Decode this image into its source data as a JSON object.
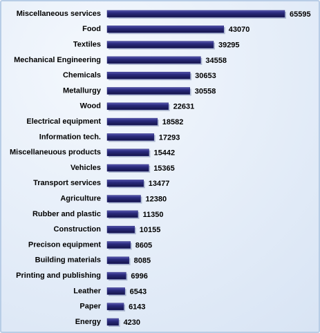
{
  "chart_data": {
    "type": "bar",
    "color": "#2b2b7e",
    "categories": [
      "Miscellaneous services",
      "Food",
      "Textiles",
      "Mechanical Engineering",
      "Chemicals",
      "Metallurgy",
      "Wood",
      "Electrical equipment",
      "Information tech.",
      "Miscellaneuous products",
      "Vehicles",
      "Transport services",
      "Agriculture",
      "Rubber and plastic",
      "Construction",
      "Precison equipment",
      "Building materials",
      "Printing and publishing",
      "Leather",
      "Paper",
      "Energy"
    ],
    "values": [
      65595,
      43070,
      39295,
      34558,
      30653,
      30558,
      22631,
      18582,
      17293,
      15442,
      15365,
      13477,
      12380,
      11350,
      10155,
      8605,
      8085,
      6996,
      6543,
      6143,
      4230
    ]
  }
}
